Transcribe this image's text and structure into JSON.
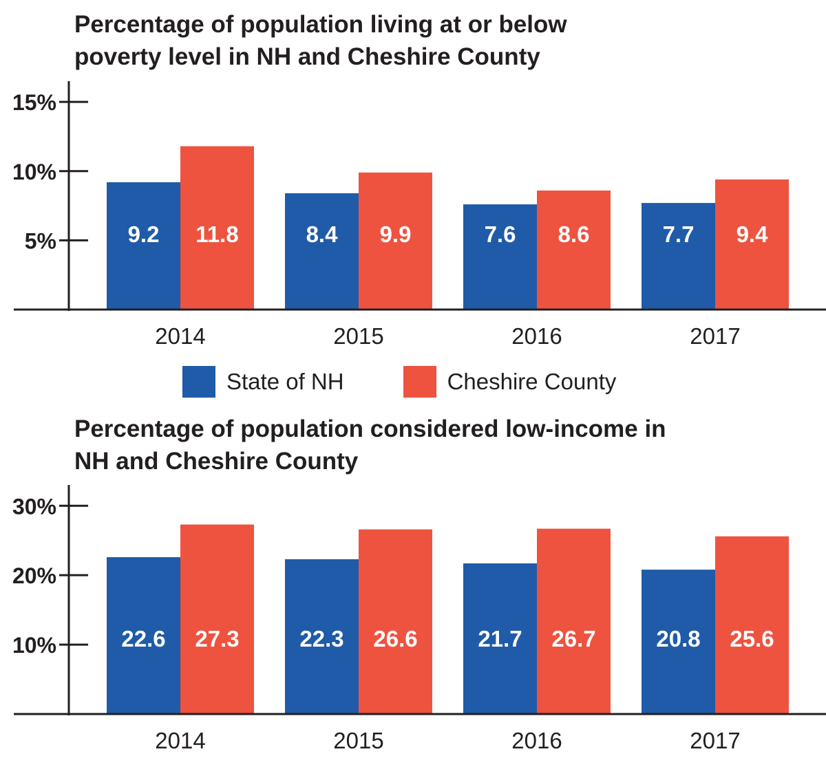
{
  "colors": {
    "nh": "#1f5ba8",
    "cheshire": "#ee5340",
    "axis": "#231f20"
  },
  "legend": [
    {
      "name": "State of NH",
      "color": "#1f5ba8"
    },
    {
      "name": "Cheshire County",
      "color": "#ee5340"
    }
  ],
  "chart_data": [
    {
      "type": "bar",
      "title": "Percentage of population living at or below\npoverty level in NH and Cheshire County",
      "xlabel": "",
      "ylabel": "",
      "categories": [
        "2014",
        "2015",
        "2016",
        "2017"
      ],
      "series": [
        {
          "name": "State of NH",
          "values": [
            9.2,
            8.4,
            7.6,
            7.7
          ],
          "labels": [
            "9.2",
            "8.4",
            "7.6",
            "7.7"
          ]
        },
        {
          "name": "Cheshire County",
          "values": [
            11.8,
            9.9,
            8.6,
            9.4
          ],
          "labels": [
            "11.8",
            "9.9",
            "8.6",
            "9.4"
          ]
        }
      ],
      "yticks": [
        5,
        10,
        15
      ],
      "ytick_labels": [
        "5%",
        "10%",
        "15%"
      ],
      "ylim": [
        0,
        16.5
      ],
      "grid": false,
      "legend_position": "bottom"
    },
    {
      "type": "bar",
      "title": "Percentage of population considered low-income in\nNH and Cheshire County",
      "xlabel": "",
      "ylabel": "",
      "categories": [
        "2014",
        "2015",
        "2016",
        "2017"
      ],
      "series": [
        {
          "name": "State of NH",
          "values": [
            22.6,
            22.3,
            21.7,
            20.8
          ],
          "labels": [
            "22.6",
            "22.3",
            "21.7",
            "20.8"
          ]
        },
        {
          "name": "Cheshire County",
          "values": [
            27.3,
            26.6,
            26.7,
            25.6
          ],
          "labels": [
            "27.3",
            "26.6",
            "26.7",
            "25.6"
          ]
        }
      ],
      "yticks": [
        10,
        20,
        30
      ],
      "ytick_labels": [
        "10%",
        "20%",
        "30%"
      ],
      "ylim": [
        0,
        33
      ],
      "grid": false,
      "legend_position": "none"
    }
  ]
}
